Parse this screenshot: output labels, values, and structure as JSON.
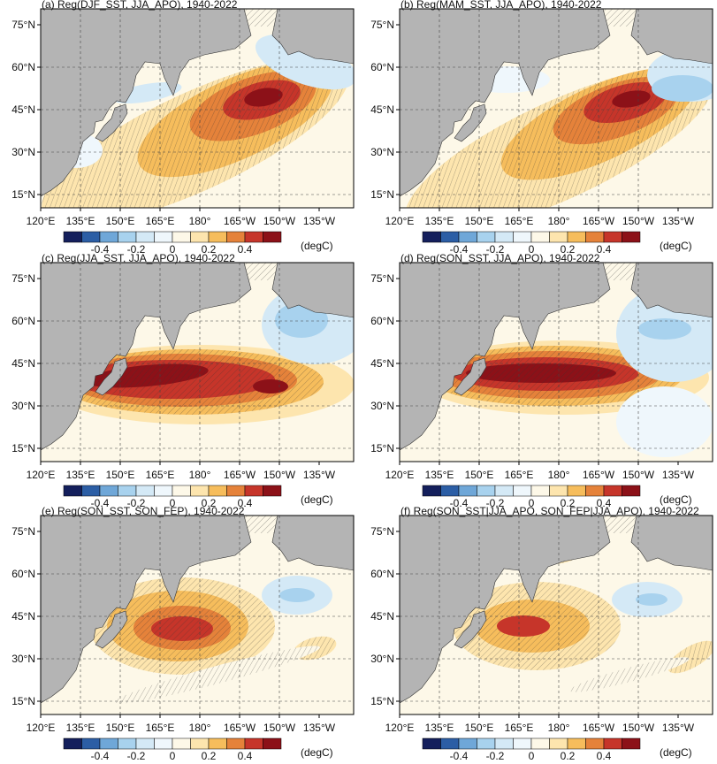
{
  "panels": [
    {
      "title": "(a) Reg(DJF_SST, JJA_APO), 1940-2022"
    },
    {
      "title": "(b) Reg(MAM_SST, JJA_APO), 1940-2022"
    },
    {
      "title": "(c) Reg(JJA_SST, JJA_APO), 1940-2022"
    },
    {
      "title": "(d) Reg(SON_SST, JJA_APO), 1940-2022"
    },
    {
      "title": "(e) Reg(SON_SST, SON_FEP), 1940-2022"
    },
    {
      "title": "(f) Reg(SON_SST|JJA_APO, SON_FEP|JJA_APO), 1940-2022"
    }
  ],
  "lat_labels": [
    "75°N",
    "60°N",
    "45°N",
    "30°N",
    "15°N"
  ],
  "lon_labels": [
    "120°E",
    "135°E",
    "150°E",
    "165°E",
    "180°",
    "165°W",
    "150°W",
    "135°W"
  ],
  "colorbar": {
    "labels": [
      "-0.4",
      "-0.2",
      "0",
      "0.2",
      "0.4"
    ],
    "unit": "(degC)",
    "colors": [
      "#141f5c",
      "#2c5ea5",
      "#6fa7d8",
      "#a8d2ee",
      "#d4e9f6",
      "#eff7fc",
      "#fdf8e8",
      "#fde5ae",
      "#f6bd5c",
      "#e5823a",
      "#c6352a",
      "#8c1118"
    ]
  }
}
